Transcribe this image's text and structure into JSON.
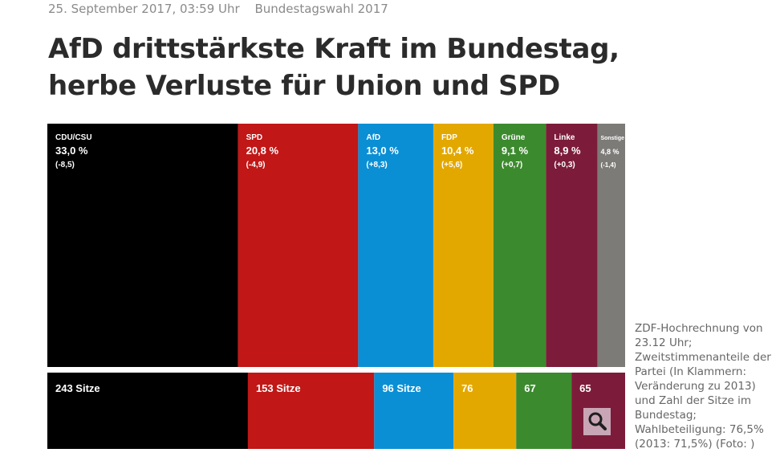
{
  "article": {
    "timestamp": "25. September 2017, 03:59 Uhr",
    "topic": "Bundestagswahl 2017",
    "headline_line1": "AfD drittstärkste Kraft im Bundestag,",
    "headline_line2": "herbe Verluste für Union und SPD",
    "caption": "ZDF-Hochrechnung von 23.12 Uhr; Zweitstimmenanteile der Partei (In Klammern: Veränderung zu 2013) und Zahl der Sitze im Bundestag; Wahlbeteiligung: 76,5% (2013: 71,5%) (Foto: )"
  },
  "zoom_icon": "magnifier-icon",
  "chart_data": {
    "type": "bar",
    "categories": [
      "CDU/CSU",
      "SPD",
      "AfD",
      "FDP",
      "Grüne",
      "Linke",
      "Sonstige"
    ],
    "values": [
      33.0,
      20.8,
      13.0,
      10.4,
      9.1,
      8.9,
      4.8
    ],
    "value_labels": [
      "33,0 %",
      "20,8 %",
      "13,0 %",
      "10,4 %",
      "9,1 %",
      "8,9 %",
      "4,8 %"
    ],
    "change_labels": [
      "(-8,5)",
      "(-4,9)",
      "(+8,3)",
      "(+5,6)",
      "(+0,7)",
      "(+0,3)",
      "(-1,4)"
    ],
    "colors": [
      "#000000",
      "#c11717",
      "#0a8fd5",
      "#e3a800",
      "#3c8a2e",
      "#7c1c3a",
      "#7d7b78"
    ],
    "seats": {
      "categories": [
        "CDU/CSU",
        "SPD",
        "AfD",
        "FDP",
        "Grüne",
        "Linke"
      ],
      "values": [
        243,
        153,
        96,
        76,
        67,
        65
      ],
      "labels": [
        "243 Sitze",
        "153 Sitze",
        "96 Sitze",
        "76",
        "67",
        "65"
      ]
    }
  }
}
